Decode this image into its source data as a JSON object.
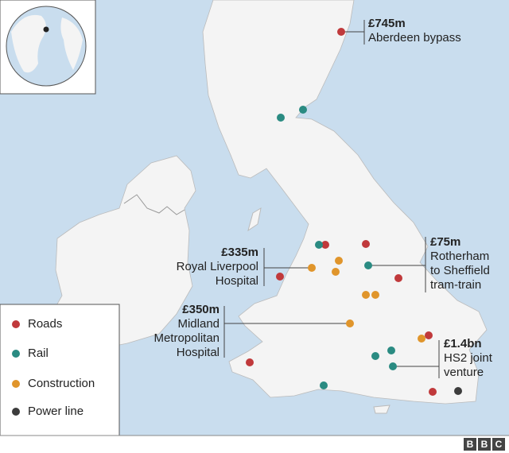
{
  "legend": [
    {
      "name": "Roads",
      "color": "#c0393b"
    },
    {
      "name": "Rail",
      "color": "#2a8b82"
    },
    {
      "name": "Construction",
      "color": "#e0952b"
    },
    {
      "name": "Power line",
      "color": "#3c3c3c"
    }
  ],
  "annotations": [
    {
      "amount": "£745m",
      "label": [
        "Aberdeen bypass"
      ]
    },
    {
      "amount": "£335m",
      "label": [
        "Royal Liverpool",
        "Hospital"
      ]
    },
    {
      "amount": "£350m",
      "label": [
        "Midland",
        "Metropolitan",
        "Hospital"
      ]
    },
    {
      "amount": "£75m",
      "label": [
        "Rotherham",
        "to Sheffield",
        "tram-train"
      ]
    },
    {
      "amount": "£1.4bn",
      "label": [
        "HS2 joint",
        "venture"
      ]
    }
  ],
  "logo": [
    "B",
    "B",
    "C"
  ]
}
